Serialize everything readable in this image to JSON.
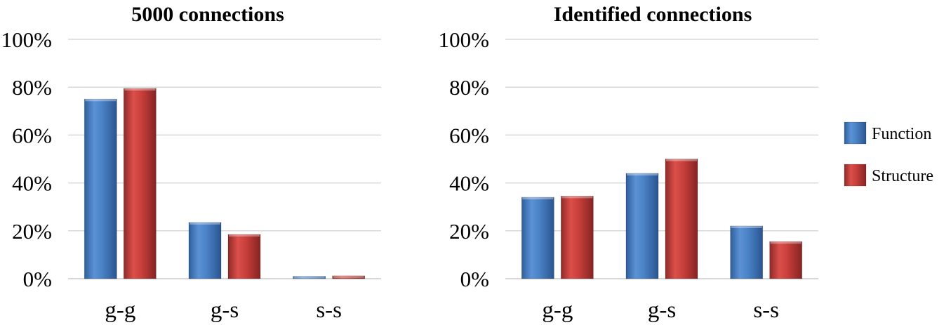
{
  "legend": {
    "items": [
      {
        "label": "Function",
        "color": "#4f81bd"
      },
      {
        "label": "Structure",
        "color": "#c0504d"
      }
    ],
    "position": "right"
  },
  "chart_data": [
    {
      "type": "bar",
      "title": "5000 connections",
      "categories": [
        "g-g",
        "g-s",
        "s-s"
      ],
      "y_ticks": [
        "0%",
        "20%",
        "40%",
        "60%",
        "80%",
        "100%"
      ],
      "ylim": [
        0,
        100
      ],
      "grid": true,
      "series": [
        {
          "name": "Function",
          "color": "#4f81bd",
          "values": [
            75,
            23.5,
            1
          ]
        },
        {
          "name": "Structure",
          "color": "#c0504d",
          "values": [
            79.5,
            18.5,
            1.2
          ]
        }
      ]
    },
    {
      "type": "bar",
      "title": "Identified connections",
      "categories": [
        "g-g",
        "g-s",
        "s-s"
      ],
      "y_ticks": [
        "0%",
        "20%",
        "40%",
        "60%",
        "80%",
        "100%"
      ],
      "ylim": [
        0,
        100
      ],
      "grid": true,
      "series": [
        {
          "name": "Function",
          "color": "#4f81bd",
          "values": [
            34,
            44,
            22
          ]
        },
        {
          "name": "Structure",
          "color": "#c0504d",
          "values": [
            34.5,
            50,
            15.5
          ]
        }
      ]
    }
  ]
}
